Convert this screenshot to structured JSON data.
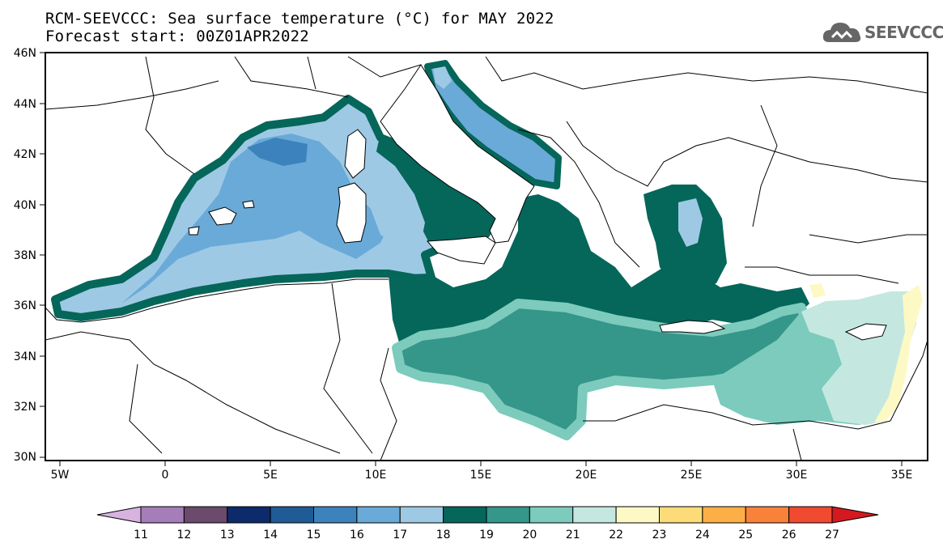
{
  "header": {
    "title_line1": "RCM-SEEVCCC: Sea surface temperature (°C) for MAY 2022",
    "title_line2": "Forecast start: 00Z01APR2022",
    "logo_text": "SEEVCCC"
  },
  "map": {
    "lat_labels": [
      "46N",
      "44N",
      "42N",
      "40N",
      "38N",
      "36N",
      "34N",
      "32N",
      "30N"
    ],
    "lon_labels": [
      "5W",
      "0",
      "5E",
      "10E",
      "15E",
      "20E",
      "25E",
      "30E",
      "35E"
    ]
  },
  "colorbar": {
    "labels": [
      "11",
      "12",
      "13",
      "14",
      "15",
      "16",
      "17",
      "18",
      "19",
      "20",
      "21",
      "22",
      "23",
      "24",
      "25",
      "26",
      "27"
    ],
    "colors": [
      "#d9b3e0",
      "#a57db8",
      "#6b4a6b",
      "#0d2a6b",
      "#1f5c96",
      "#3c83bd",
      "#6aaad8",
      "#9ec9e4",
      "#05665a",
      "#35968a",
      "#7ccbbd",
      "#c4e8df",
      "#fdf9c4",
      "#fddb79",
      "#fcaf47",
      "#f9823a",
      "#f04a30",
      "#d4191f"
    ]
  }
}
